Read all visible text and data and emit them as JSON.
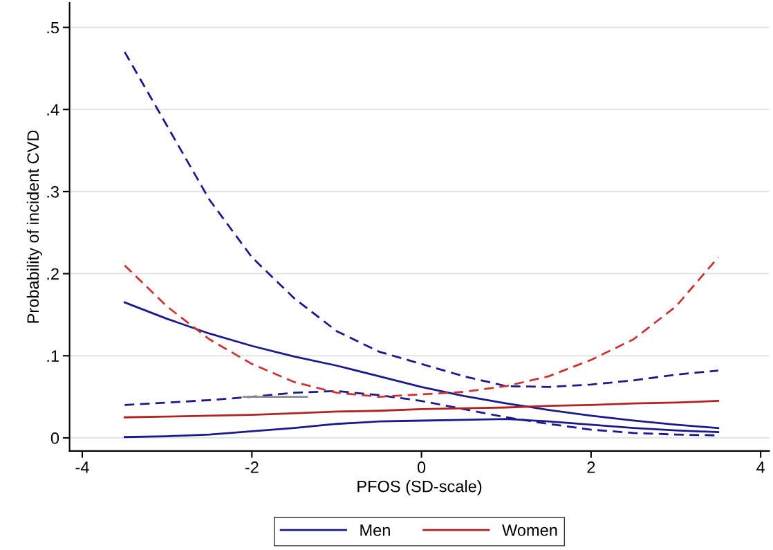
{
  "chart_data": {
    "type": "line",
    "xlabel": "PFOS (SD-scale)",
    "ylabel": "Probability of incident CVD",
    "xlim": [
      -4.15,
      4.1
    ],
    "ylim": [
      -0.016,
      0.53
    ],
    "xticks": [
      -4,
      -2,
      0,
      2,
      4
    ],
    "yticks": [
      {
        "value": 0,
        "label": "0"
      },
      {
        "value": 0.1,
        "label": ".1"
      },
      {
        "value": 0.2,
        "label": ".2"
      },
      {
        "value": 0.3,
        "label": ".3"
      },
      {
        "value": 0.4,
        "label": ".4"
      },
      {
        "value": 0.5,
        "label": ".5"
      }
    ],
    "grid": "y",
    "legend": "bottom",
    "x": [
      -3.5,
      -3,
      -2.5,
      -2,
      -1.5,
      -1,
      -0.5,
      0,
      0.5,
      1,
      1.5,
      2,
      2.5,
      3,
      3.5
    ],
    "series": [
      {
        "name": "Men",
        "color": "#1a1a8c",
        "line_style": "solid",
        "values": [
          0.165,
          0.145,
          0.127,
          0.112,
          0.099,
          0.088,
          0.075,
          0.062,
          0.051,
          0.042,
          0.034,
          0.027,
          0.021,
          0.016,
          0.012
        ]
      },
      {
        "color": "#1a1a8c",
        "line_style": "dashed",
        "values": [
          0.47,
          0.38,
          0.29,
          0.22,
          0.17,
          0.13,
          0.105,
          0.09,
          0.075,
          0.063,
          0.062,
          0.065,
          0.07,
          0.077,
          0.082
        ]
      },
      {
        "color": "#1a1a8c",
        "line_style": "dashed",
        "values": [
          0.04,
          0.043,
          0.046,
          0.05,
          0.055,
          0.057,
          0.052,
          0.045,
          0.035,
          0.025,
          0.017,
          0.01,
          0.006,
          0.004,
          0.003
        ]
      },
      {
        "color": "#1a1a8c",
        "line_style": "solid",
        "values": [
          0.001,
          0.002,
          0.004,
          0.008,
          0.012,
          0.017,
          0.02,
          0.021,
          0.022,
          0.023,
          0.02,
          0.016,
          0.012,
          0.009,
          0.007
        ]
      },
      {
        "name": "Women",
        "color": "#b22222",
        "line_style": "solid",
        "values": [
          0.025,
          0.026,
          0.027,
          0.028,
          0.03,
          0.032,
          0.033,
          0.035,
          0.036,
          0.037,
          0.039,
          0.04,
          0.042,
          0.043,
          0.045
        ]
      },
      {
        "color": "#cc3333",
        "line_style": "dashed",
        "values": [
          0.21,
          0.16,
          0.12,
          0.09,
          0.068,
          0.055,
          0.05,
          0.053,
          0.056,
          0.063,
          0.075,
          0.095,
          0.12,
          0.16,
          0.22
        ]
      },
      {
        "color": "#8c8c8c",
        "line_style": "solid",
        "x": [
          -2.1,
          -1.35
        ],
        "values": [
          0.05,
          0.05
        ]
      }
    ]
  }
}
